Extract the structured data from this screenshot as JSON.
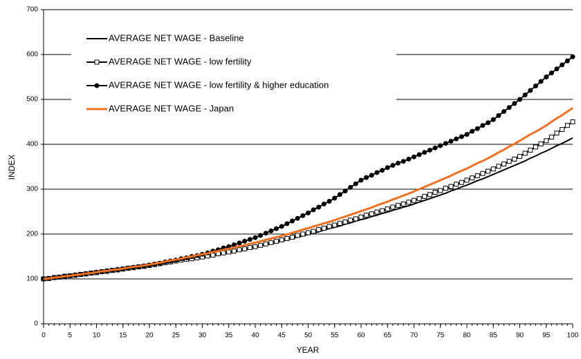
{
  "chart_data": {
    "type": "line",
    "xlabel": "YEAR",
    "ylabel": "INDEX",
    "x": [
      0,
      1,
      2,
      3,
      4,
      5,
      6,
      7,
      8,
      9,
      10,
      11,
      12,
      13,
      14,
      15,
      16,
      17,
      18,
      19,
      20,
      21,
      22,
      23,
      24,
      25,
      26,
      27,
      28,
      29,
      30,
      31,
      32,
      33,
      34,
      35,
      36,
      37,
      38,
      39,
      40,
      41,
      42,
      43,
      44,
      45,
      46,
      47,
      48,
      49,
      50,
      51,
      52,
      53,
      54,
      55,
      56,
      57,
      58,
      59,
      60,
      61,
      62,
      63,
      64,
      65,
      66,
      67,
      68,
      69,
      70,
      71,
      72,
      73,
      74,
      75,
      76,
      77,
      78,
      79,
      80,
      81,
      82,
      83,
      84,
      85,
      86,
      87,
      88,
      89,
      90,
      91,
      92,
      93,
      94,
      95,
      96,
      97,
      98,
      99,
      100
    ],
    "xlim": [
      0,
      100
    ],
    "xticks": [
      0,
      5,
      10,
      15,
      20,
      25,
      30,
      35,
      40,
      45,
      50,
      55,
      60,
      65,
      70,
      75,
      80,
      85,
      90,
      95,
      100
    ],
    "ylim": [
      0,
      700
    ],
    "yticks": [
      0,
      100,
      200,
      300,
      400,
      500,
      600,
      700
    ],
    "grid": true,
    "legend": "upper left",
    "series": [
      {
        "name": "AVERAGE NET WAGE - Baseline",
        "color": "#000000",
        "marker": "none",
        "values": [
          100,
          101,
          103,
          104,
          106,
          107,
          108,
          110,
          111,
          113,
          114,
          116,
          117,
          119,
          120,
          122,
          124,
          125,
          127,
          128,
          130,
          132,
          134,
          135,
          137,
          139,
          141,
          143,
          144,
          146,
          148,
          150,
          152,
          154,
          156,
          158,
          160,
          163,
          165,
          168,
          170,
          173,
          176,
          178,
          181,
          184,
          187,
          190,
          193,
          196,
          199,
          202,
          205,
          209,
          212,
          215,
          218,
          222,
          225,
          229,
          232,
          235,
          239,
          242,
          246,
          249,
          253,
          256,
          260,
          263,
          267,
          271,
          275,
          279,
          283,
          287,
          291,
          296,
          300,
          305,
          309,
          314,
          319,
          323,
          328,
          333,
          338,
          343,
          348,
          353,
          358,
          363,
          369,
          374,
          380,
          385,
          391,
          397,
          402,
          408,
          414
        ]
      },
      {
        "name": "AVERAGE NET WAGE - low fertility",
        "color": "#000000",
        "marker": "square",
        "values": [
          100,
          101,
          103,
          104,
          106,
          107,
          108,
          110,
          111,
          113,
          114,
          116,
          117,
          119,
          120,
          122,
          124,
          125,
          127,
          128,
          130,
          132,
          134,
          136,
          138,
          140,
          142,
          144,
          145,
          147,
          149,
          151,
          153,
          156,
          158,
          160,
          162,
          165,
          167,
          170,
          172,
          175,
          178,
          181,
          184,
          187,
          190,
          193,
          197,
          200,
          203,
          206,
          210,
          213,
          217,
          220,
          224,
          227,
          231,
          234,
          238,
          242,
          245,
          249,
          252,
          256,
          260,
          264,
          267,
          271,
          275,
          279,
          284,
          288,
          293,
          297,
          302,
          306,
          311,
          315,
          320,
          325,
          330,
          335,
          340,
          345,
          351,
          356,
          362,
          367,
          373,
          380,
          387,
          394,
          401,
          408,
          416,
          425,
          433,
          442,
          450
        ]
      },
      {
        "name": "AVERAGE NET WAGE - low fertility & higher education",
        "color": "#000000",
        "marker": "circle",
        "values": [
          100,
          101,
          103,
          104,
          106,
          107,
          109,
          110,
          112,
          113,
          115,
          116,
          118,
          119,
          121,
          122,
          124,
          126,
          127,
          129,
          131,
          133,
          135,
          138,
          140,
          142,
          145,
          147,
          150,
          152,
          155,
          158,
          162,
          165,
          169,
          172,
          176,
          180,
          184,
          188,
          192,
          197,
          202,
          207,
          212,
          217,
          223,
          229,
          235,
          241,
          247,
          254,
          260,
          267,
          273,
          280,
          288,
          296,
          304,
          312,
          320,
          326,
          331,
          337,
          342,
          348,
          353,
          358,
          362,
          367,
          372,
          377,
          382,
          387,
          392,
          397,
          402,
          407,
          412,
          417,
          422,
          429,
          435,
          442,
          448,
          455,
          464,
          473,
          482,
          491,
          500,
          510,
          520,
          530,
          540,
          550,
          559,
          568,
          577,
          586,
          595
        ]
      },
      {
        "name": "AVERAGE NET WAGE - Japan",
        "color": "#f07020",
        "marker": "none",
        "values": [
          100,
          101,
          103,
          104,
          106,
          107,
          109,
          110,
          112,
          113,
          115,
          117,
          118,
          120,
          121,
          123,
          125,
          127,
          128,
          130,
          132,
          134,
          136,
          139,
          141,
          143,
          145,
          148,
          150,
          153,
          155,
          157,
          160,
          162,
          165,
          167,
          170,
          173,
          175,
          178,
          181,
          184,
          187,
          190,
          193,
          196,
          199,
          203,
          206,
          210,
          213,
          217,
          220,
          224,
          227,
          231,
          235,
          239,
          243,
          247,
          251,
          255,
          259,
          264,
          268,
          272,
          277,
          281,
          286,
          290,
          295,
          300,
          305,
          310,
          315,
          320,
          325,
          330,
          336,
          341,
          346,
          352,
          358,
          363,
          369,
          375,
          382,
          388,
          395,
          401,
          408,
          415,
          422,
          428,
          435,
          442,
          450,
          458,
          465,
          473,
          481
        ]
      }
    ]
  }
}
